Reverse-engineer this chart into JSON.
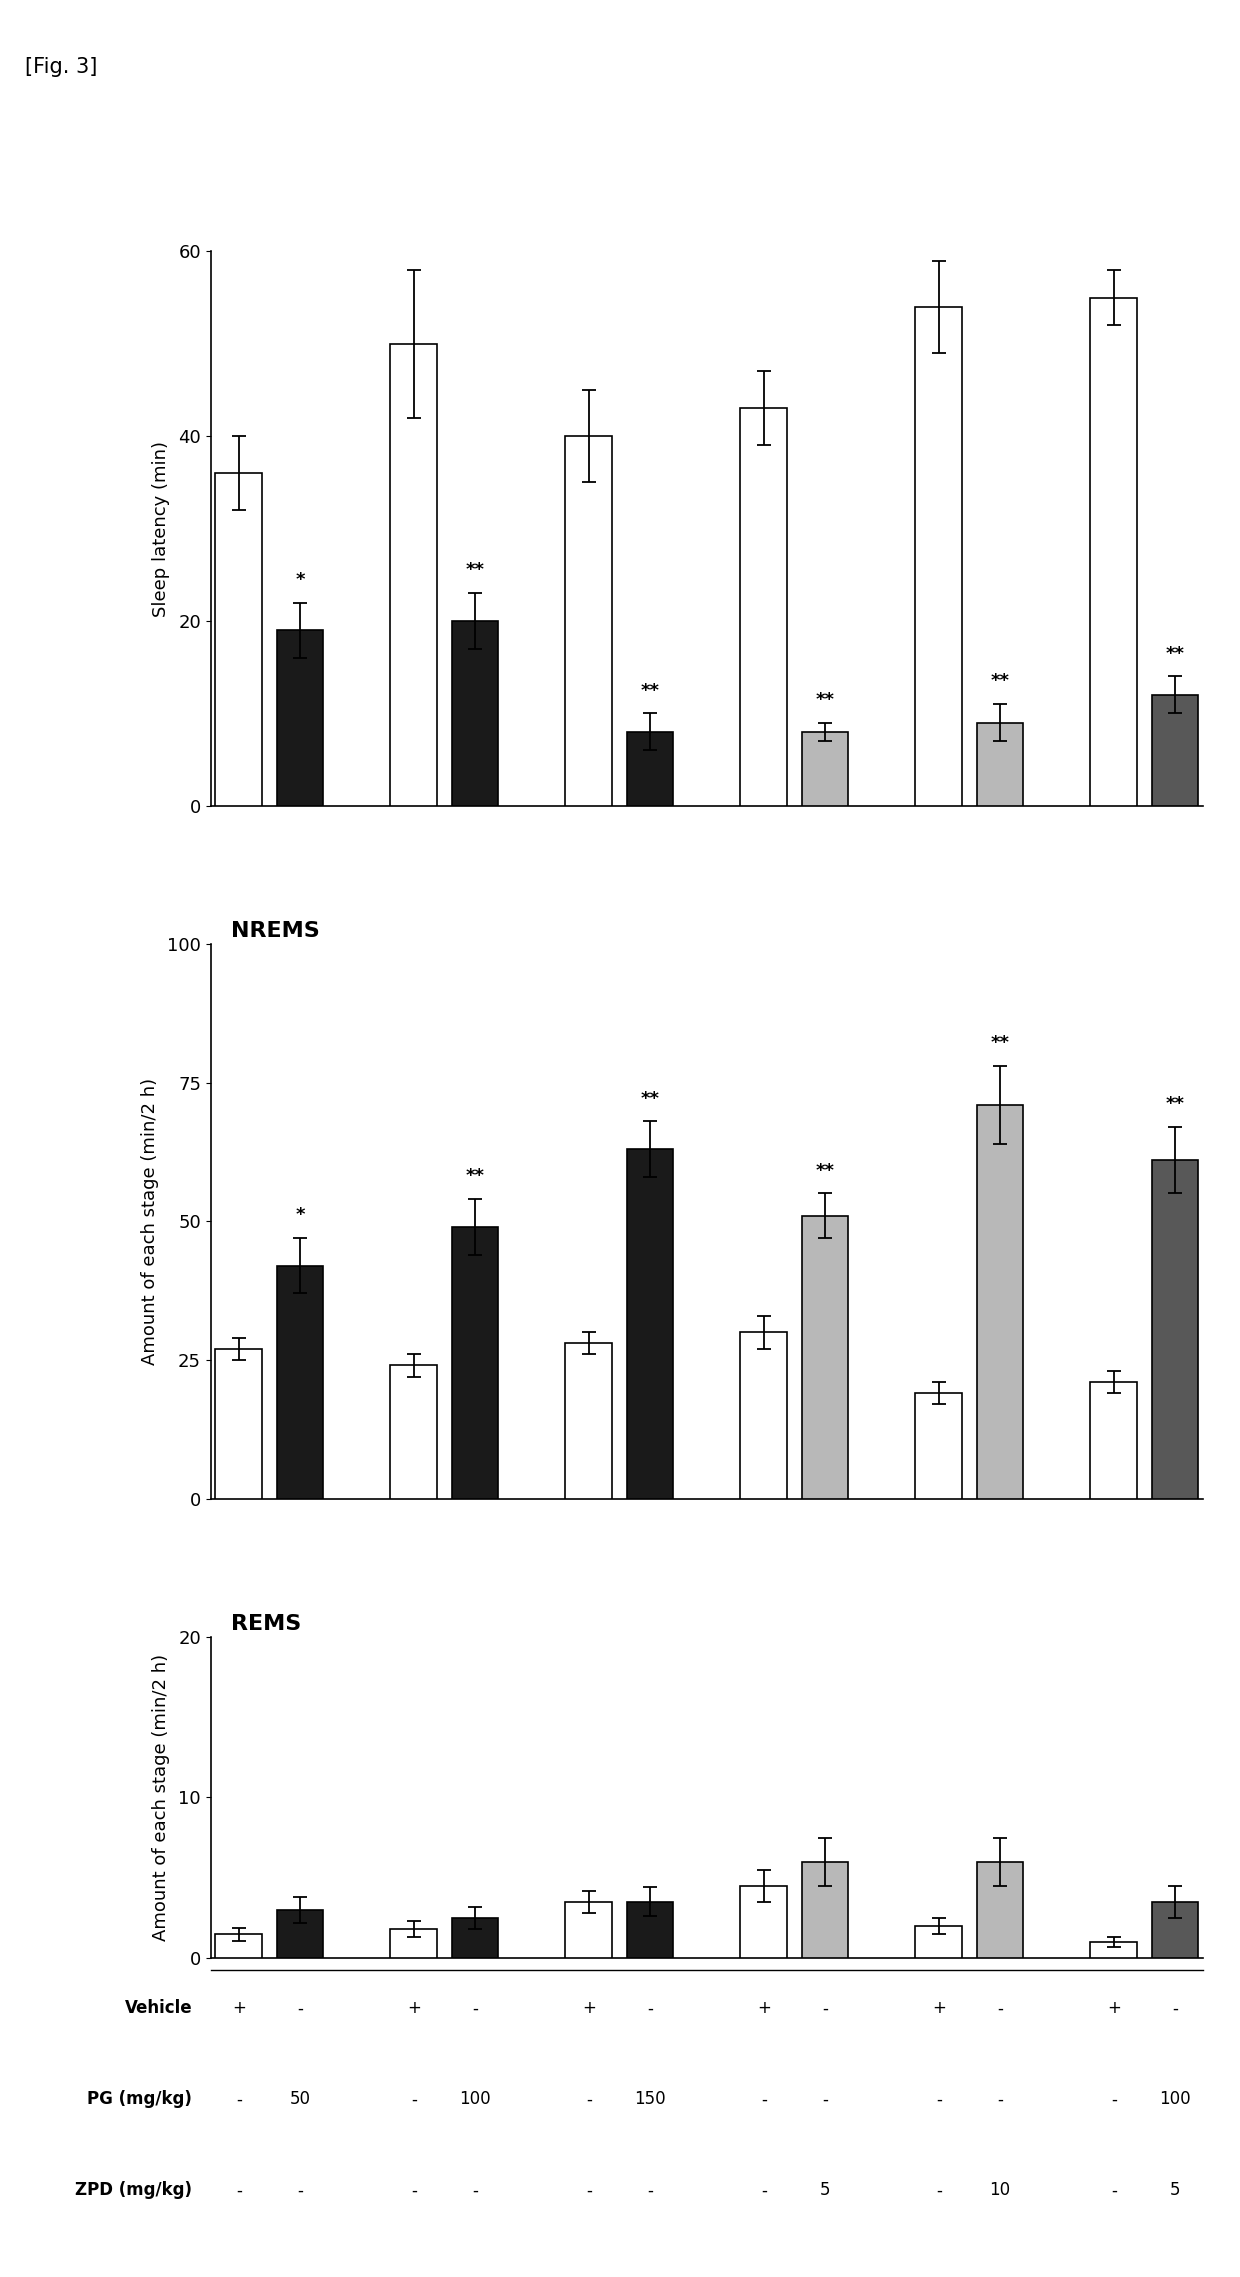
{
  "fig_label": "[Fig. 3]",
  "group_labels_vehicle": [
    "+",
    "-",
    "+",
    "-",
    "+",
    "-",
    "+",
    "-",
    "+",
    "-",
    "+",
    "-"
  ],
  "group_labels_pg": [
    "-",
    "50",
    "-",
    "100",
    "-",
    "150",
    "-",
    "-",
    "-",
    "-",
    "-",
    "100"
  ],
  "group_labels_zpd": [
    "-",
    "-",
    "-",
    "-",
    "-",
    "-",
    "-",
    "5",
    "-",
    "10",
    "-",
    "5"
  ],
  "bar_colors_white": "#ffffff",
  "bar_colors_black": "#1a1a1a",
  "bar_colors_lightgray": "#b8b8b8",
  "bar_colors_darkgray": "#585858",
  "sleep_latency": {
    "ylabel": "Sleep latency (min)",
    "ylim": [
      0,
      60
    ],
    "yticks": [
      0,
      20,
      40,
      60
    ],
    "white_vals": [
      36,
      50,
      40,
      43,
      54,
      55
    ],
    "white_err": [
      4,
      8,
      5,
      4,
      5,
      3
    ],
    "dark_vals": [
      19,
      20,
      8,
      8,
      9,
      12
    ],
    "dark_err": [
      3,
      3,
      2,
      1,
      2,
      2
    ],
    "dark_sig": [
      "*",
      "**",
      "**",
      "**",
      "**",
      "**"
    ],
    "dark_colors": [
      "black",
      "black",
      "black",
      "lightgray",
      "lightgray",
      "darkgray"
    ]
  },
  "nrems": {
    "title": "NREMS",
    "ylim": [
      0,
      100
    ],
    "yticks": [
      0,
      25,
      50,
      75,
      100
    ],
    "white_vals": [
      27,
      24,
      28,
      30,
      19,
      21
    ],
    "white_err": [
      2,
      2,
      2,
      3,
      2,
      2
    ],
    "dark_vals": [
      42,
      49,
      63,
      51,
      71,
      61
    ],
    "dark_err": [
      5,
      5,
      5,
      4,
      7,
      6
    ],
    "dark_sig": [
      "*",
      "**",
      "**",
      "**",
      "**",
      "**"
    ],
    "dark_colors": [
      "black",
      "black",
      "black",
      "lightgray",
      "lightgray",
      "darkgray"
    ]
  },
  "rems": {
    "title": "REMS",
    "ylim": [
      0,
      20
    ],
    "yticks": [
      0,
      10,
      20
    ],
    "white_vals": [
      1.5,
      1.8,
      3.5,
      4.5,
      2.0,
      1.0
    ],
    "white_err": [
      0.4,
      0.5,
      0.7,
      1.0,
      0.5,
      0.3
    ],
    "dark_vals": [
      3.0,
      2.5,
      3.5,
      6.0,
      6.0,
      3.5
    ],
    "dark_err": [
      0.8,
      0.7,
      0.9,
      1.5,
      1.5,
      1.0
    ],
    "dark_sig": [
      "",
      "",
      "",
      "",
      "",
      ""
    ],
    "dark_colors": [
      "black",
      "black",
      "black",
      "lightgray",
      "lightgray",
      "darkgray"
    ]
  }
}
